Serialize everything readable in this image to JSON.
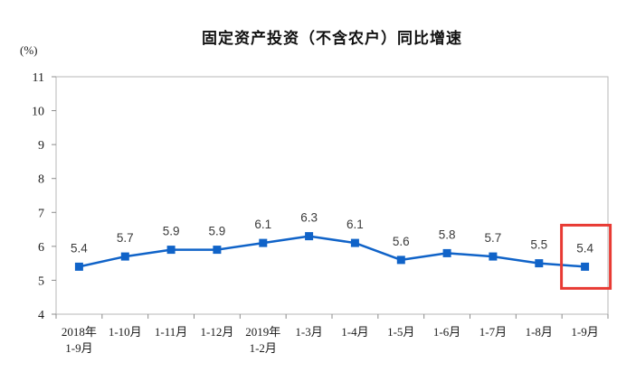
{
  "chart_data": {
    "type": "line",
    "title": "固定资产投资（不含农户）同比增速",
    "unit_label": "(%)",
    "categories": [
      [
        "2018年",
        "1-9月"
      ],
      [
        "1-10月"
      ],
      [
        "1-11月"
      ],
      [
        "1-12月"
      ],
      [
        "2019年",
        "1-2月"
      ],
      [
        "1-3月"
      ],
      [
        "1-4月"
      ],
      [
        "1-5月"
      ],
      [
        "1-6月"
      ],
      [
        "1-7月"
      ],
      [
        "1-8月"
      ],
      [
        "1-9月"
      ]
    ],
    "values": [
      5.4,
      5.7,
      5.9,
      5.9,
      6.1,
      6.3,
      6.1,
      5.6,
      5.8,
      5.7,
      5.5,
      5.4
    ],
    "data_labels": [
      "5.4",
      "5.7",
      "5.9",
      "5.9",
      "6.1",
      "6.3",
      "6.1",
      "5.6",
      "5.8",
      "5.7",
      "5.5",
      "5.4"
    ],
    "ylim": [
      4,
      11
    ],
    "ytick_step": 1,
    "ytick_labels": [
      "4",
      "5",
      "6",
      "7",
      "8",
      "9",
      "10",
      "11"
    ],
    "grid": false,
    "legend_position": "none",
    "colors": {
      "line": "#1063c8",
      "marker": "#1063c8",
      "plot_border": "#b7b7b7",
      "tick": "#8c8c8c",
      "highlight_box": "#e83a33"
    },
    "highlight": {
      "index": 11,
      "label": "5.4"
    }
  }
}
